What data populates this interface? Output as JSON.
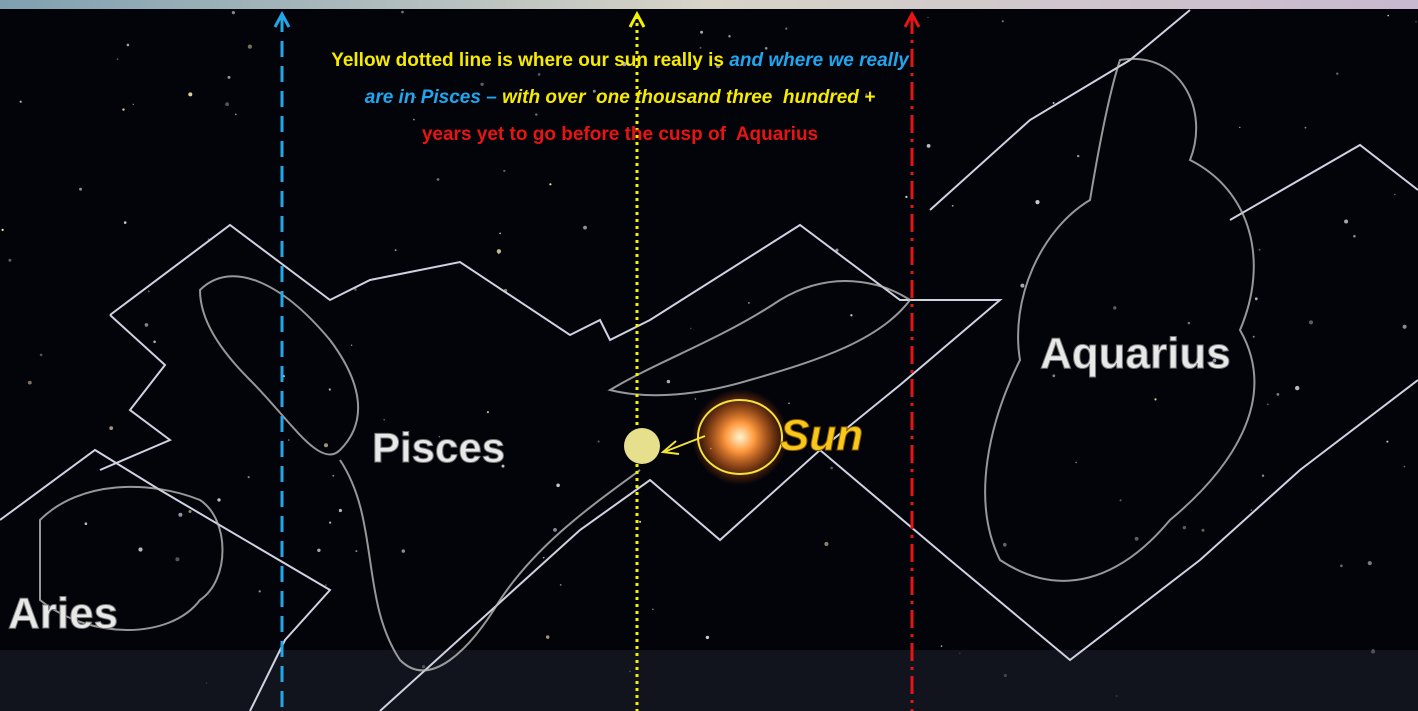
{
  "annotation": {
    "lines": [
      {
        "segments": [
          {
            "text": "Yellow dotted line is where our sun really is "
          },
          {
            "text": "and where we really"
          }
        ]
      },
      {
        "segments": [
          {
            "text": "are in Pisces – "
          },
          {
            "text": "with over  one thousand three  hundred +"
          }
        ]
      },
      {
        "segments": [
          {
            "text": "years yet to go before the cusp of  Aquarius"
          }
        ]
      }
    ]
  },
  "labels": {
    "aries": "Aries",
    "pisces": "Pisces",
    "sun": "Sun",
    "aquarius": "Aquarius"
  }
}
